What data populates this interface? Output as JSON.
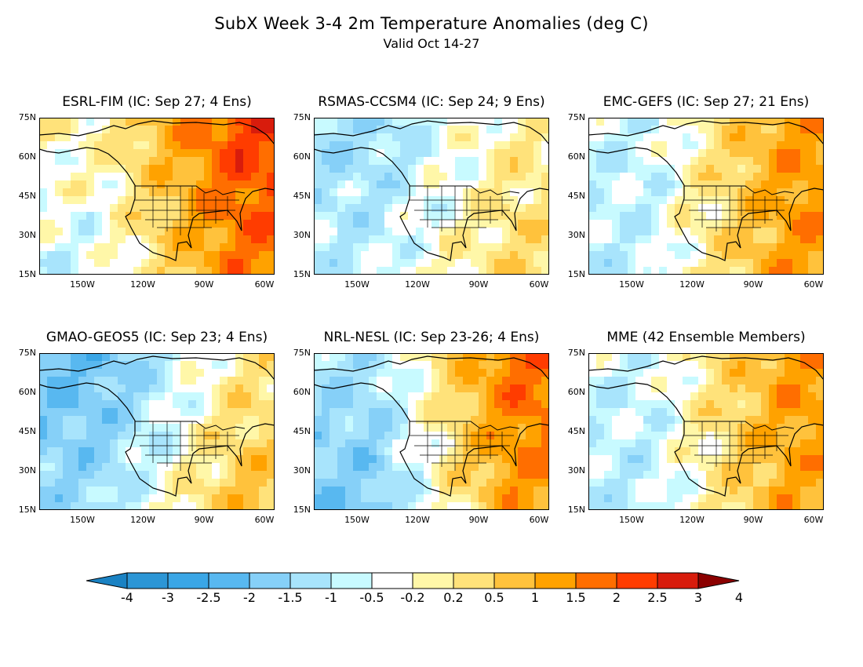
{
  "title": "SubX Week 3-4 2m Temperature Anomalies (deg C)",
  "subtitle": "Valid Oct 14-27",
  "lat_labels": [
    "75N",
    "60N",
    "45N",
    "30N",
    "15N"
  ],
  "lon_labels": [
    "150W",
    "120W",
    "90W",
    "60W"
  ],
  "panels": [
    {
      "id": "esrl-fim",
      "title": "ESRL-FIM (IC: Sep 27; 4 Ens)",
      "pattern": {
        "west": -0.6,
        "east": 2.6,
        "north": 1.6,
        "south": 0.3
      }
    },
    {
      "id": "rsmas-ccsm4",
      "title": "RSMAS-CCSM4 (IC: Sep 24; 9 Ens)",
      "pattern": {
        "west": -0.8,
        "east": 0.9,
        "north": -0.6,
        "south": 0.4
      }
    },
    {
      "id": "emc-gefs",
      "title": "EMC-GEFS (IC: Sep 27; 21 Ens)",
      "pattern": {
        "west": -0.9,
        "east": 2.0,
        "north": 0.6,
        "south": 0.5
      }
    },
    {
      "id": "gmao-geos5",
      "title": "GMAO-GEOS5 (IC: Sep 23; 4 Ens)",
      "pattern": {
        "west": -1.6,
        "east": 1.2,
        "north": -0.8,
        "south": 0.7
      }
    },
    {
      "id": "nrl-nesl",
      "title": "NRL-NESL (IC: Sep 23-26; 4 Ens)",
      "pattern": {
        "west": -1.9,
        "east": 2.2,
        "north": 1.4,
        "south": 0.2
      }
    },
    {
      "id": "mme",
      "title": "MME (42 Ensemble Members)",
      "pattern": {
        "west": -1.0,
        "east": 1.8,
        "north": 0.9,
        "south": 0.5
      }
    }
  ],
  "colorbar": {
    "labels": [
      "-4",
      "-3",
      "-2.5",
      "-2",
      "-1.5",
      "-1",
      "-0.5",
      "-0.2",
      "0.2",
      "0.5",
      "1",
      "1.5",
      "2",
      "2.5",
      "3",
      "4"
    ],
    "colors": [
      "#1a82c3",
      "#2c96d6",
      "#3aa6e6",
      "#58b8f0",
      "#86d0f8",
      "#a8e4fc",
      "#c8faff",
      "#ffffff",
      "#fff7a8",
      "#ffe27a",
      "#ffc23c",
      "#ffa200",
      "#ff6e00",
      "#ff3c00",
      "#d81c0c",
      "#8b0000"
    ]
  }
}
